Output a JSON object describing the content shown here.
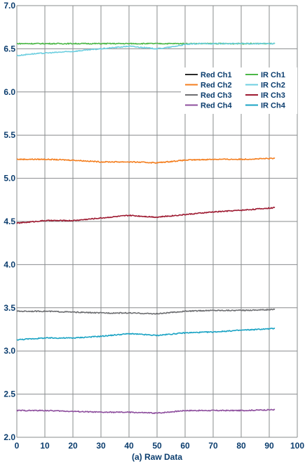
{
  "chart_data": {
    "type": "line",
    "title": "",
    "caption": "(a) Raw Data",
    "xlabel": "",
    "ylabel": "",
    "xlim": [
      0,
      100
    ],
    "ylim": [
      2.0,
      7.0
    ],
    "x_ticks": [
      0,
      10,
      20,
      30,
      40,
      50,
      60,
      70,
      80,
      90,
      100
    ],
    "y_ticks": [
      "2.0",
      "2.5",
      "3.0",
      "3.5",
      "4.0",
      "4.5",
      "5.0",
      "5.5",
      "6.0",
      "6.5",
      "7.0"
    ],
    "grid": true,
    "legend_position": "top-right",
    "series": [
      {
        "name": "Red Ch1",
        "color": "#2b2b2b",
        "x": [
          0,
          10,
          20,
          30,
          40,
          50,
          60,
          70,
          80,
          92
        ],
        "y": [
          null,
          null,
          null,
          null,
          null,
          null,
          null,
          null,
          null,
          null
        ]
      },
      {
        "name": "IR Ch1",
        "color": "#4cb848",
        "x": [
          0,
          10,
          20,
          30,
          40,
          50,
          60,
          70,
          80,
          92
        ],
        "y": [
          6.56,
          6.56,
          6.56,
          6.56,
          6.56,
          6.56,
          6.56,
          6.56,
          6.56,
          6.56
        ]
      },
      {
        "name": "Red Ch2",
        "color": "#f47f20",
        "x": [
          0,
          10,
          20,
          30,
          40,
          50,
          60,
          70,
          80,
          92
        ],
        "y": [
          5.22,
          5.22,
          5.21,
          5.19,
          5.19,
          5.18,
          5.21,
          5.22,
          5.22,
          5.23
        ]
      },
      {
        "name": "IR Ch2",
        "color": "#6ecfe0",
        "x": [
          0,
          5,
          10,
          20,
          30,
          40,
          50,
          55,
          60,
          65,
          70,
          80,
          92
        ],
        "y": [
          6.42,
          6.44,
          6.45,
          6.47,
          6.5,
          6.53,
          6.5,
          6.52,
          6.55,
          6.56,
          6.56,
          6.56,
          6.56
        ]
      },
      {
        "name": "Red Ch3",
        "color": "#6d6e71",
        "x": [
          0,
          10,
          20,
          30,
          40,
          50,
          60,
          70,
          80,
          92
        ],
        "y": [
          3.46,
          3.46,
          3.45,
          3.44,
          3.44,
          3.43,
          3.46,
          3.47,
          3.47,
          3.48
        ]
      },
      {
        "name": "IR Ch3",
        "color": "#9e1b32",
        "x": [
          0,
          10,
          20,
          30,
          40,
          50,
          60,
          70,
          80,
          92
        ],
        "y": [
          4.48,
          4.51,
          4.51,
          4.54,
          4.57,
          4.55,
          4.58,
          4.61,
          4.63,
          4.66
        ]
      },
      {
        "name": "Red Ch4",
        "color": "#8e4f9e",
        "x": [
          0,
          10,
          20,
          30,
          40,
          50,
          60,
          70,
          80,
          92
        ],
        "y": [
          2.31,
          2.31,
          2.3,
          2.29,
          2.29,
          2.28,
          2.31,
          2.31,
          2.31,
          2.32
        ]
      },
      {
        "name": "IR Ch4",
        "color": "#1aa3c4",
        "x": [
          0,
          10,
          20,
          30,
          40,
          50,
          60,
          70,
          80,
          92
        ],
        "y": [
          3.13,
          3.15,
          3.15,
          3.17,
          3.2,
          3.18,
          3.21,
          3.22,
          3.24,
          3.26
        ]
      }
    ],
    "legend": {
      "left_column": [
        "Red Ch1",
        "Red Ch2",
        "Red Ch3",
        "Red Ch4"
      ],
      "right_column": [
        "IR Ch1",
        "IR Ch2",
        "IR Ch3",
        "IR Ch4"
      ]
    }
  }
}
